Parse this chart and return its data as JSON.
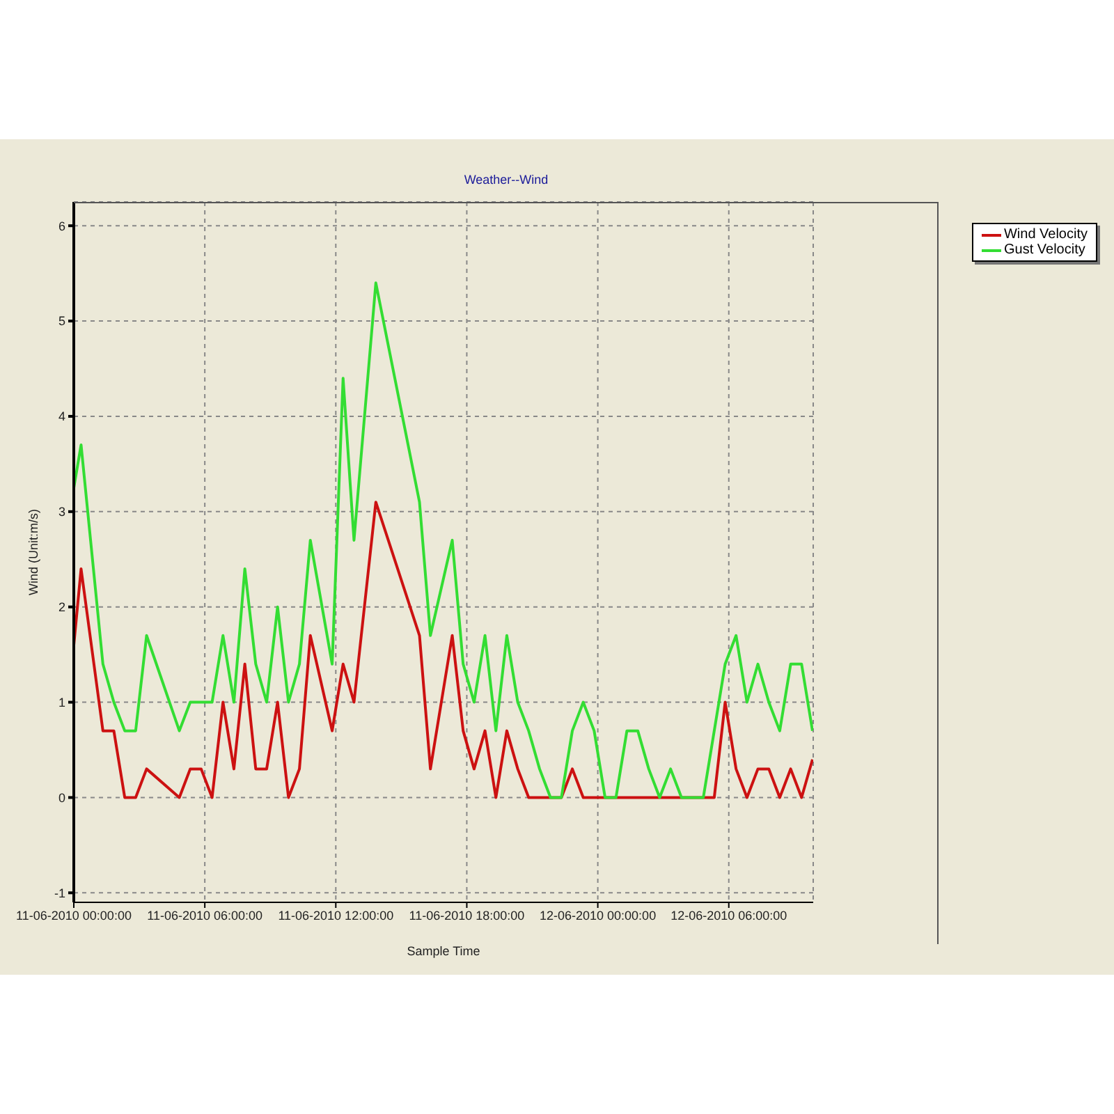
{
  "chart_data": {
    "type": "line",
    "title": "Weather--Wind",
    "xlabel": "Sample Time",
    "ylabel": "Wind (Unit:m/s)",
    "x": [
      "2010-06-11T00:00",
      "2010-06-11T00:20",
      "2010-06-11T01:20",
      "2010-06-11T01:50",
      "2010-06-11T02:20",
      "2010-06-11T02:50",
      "2010-06-11T03:20",
      "2010-06-11T04:50",
      "2010-06-11T05:20",
      "2010-06-11T05:50",
      "2010-06-11T06:20",
      "2010-06-11T06:50",
      "2010-06-11T07:20",
      "2010-06-11T07:50",
      "2010-06-11T08:20",
      "2010-06-11T08:50",
      "2010-06-11T09:20",
      "2010-06-11T09:50",
      "2010-06-11T10:20",
      "2010-06-11T10:50",
      "2010-06-11T11:50",
      "2010-06-11T12:20",
      "2010-06-11T12:50",
      "2010-06-11T13:50",
      "2010-06-11T15:50",
      "2010-06-11T16:20",
      "2010-06-11T17:20",
      "2010-06-11T17:50",
      "2010-06-11T18:20",
      "2010-06-11T18:50",
      "2010-06-11T19:20",
      "2010-06-11T19:50",
      "2010-06-11T20:20",
      "2010-06-11T20:50",
      "2010-06-11T21:20",
      "2010-06-11T21:50",
      "2010-06-11T22:20",
      "2010-06-11T22:50",
      "2010-06-11T23:20",
      "2010-06-11T23:50",
      "2010-06-12T00:20",
      "2010-06-12T00:50",
      "2010-06-12T01:20",
      "2010-06-12T01:50",
      "2010-06-12T02:20",
      "2010-06-12T02:50",
      "2010-06-12T03:20",
      "2010-06-12T03:50",
      "2010-06-12T04:50",
      "2010-06-12T05:20",
      "2010-06-12T05:50",
      "2010-06-12T06:20",
      "2010-06-12T06:50",
      "2010-06-12T07:20",
      "2010-06-12T07:50",
      "2010-06-12T08:20",
      "2010-06-12T08:50",
      "2010-06-12T09:20",
      "2010-06-12T09:50"
    ],
    "series": [
      {
        "name": "Wind Velocity",
        "color": "#cc1111",
        "values": [
          1.6,
          2.4,
          0.7,
          0.7,
          0,
          0,
          0.3,
          0,
          0.3,
          0.3,
          0,
          1.0,
          0.3,
          1.4,
          0.3,
          0.3,
          1.0,
          0,
          0.3,
          1.7,
          0.7,
          1.4,
          1.0,
          3.1,
          1.7,
          0.3,
          1.7,
          0.7,
          0.3,
          0.7,
          0,
          0.7,
          0.3,
          0,
          0,
          0,
          0,
          0.3,
          0,
          0,
          0,
          0,
          0,
          0,
          0,
          0,
          0,
          0,
          0,
          0,
          1.0,
          0.3,
          0,
          0.3,
          0.3,
          0,
          0.3,
          0,
          0.4
        ]
      },
      {
        "name": "Gust Velocity",
        "color": "#33dd33",
        "values": [
          3.25,
          3.7,
          1.4,
          1.0,
          0.7,
          0.7,
          1.7,
          0.7,
          1.0,
          1.0,
          1.0,
          1.7,
          1.0,
          2.4,
          1.4,
          1.0,
          2.0,
          1.0,
          1.4,
          2.7,
          1.4,
          4.4,
          2.7,
          5.4,
          3.1,
          1.7,
          2.7,
          1.4,
          1.0,
          1.7,
          0.7,
          1.7,
          1.0,
          0.7,
          0.3,
          0,
          0,
          0.7,
          1.0,
          0.7,
          0,
          0,
          0.7,
          0.7,
          0.3,
          0,
          0.3,
          0,
          0,
          0.7,
          1.4,
          1.7,
          1.0,
          1.4,
          1.0,
          0.7,
          1.4,
          1.4,
          0.7
        ]
      }
    ],
    "xlim": [
      "2010-06-11T00:00",
      "2010-06-12T09:52"
    ],
    "xticks": [
      {
        "value": "2010-06-11T00:00",
        "label": "11-06-2010 00:00:00"
      },
      {
        "value": "2010-06-11T06:00",
        "label": "11-06-2010 06:00:00"
      },
      {
        "value": "2010-06-11T12:00",
        "label": "11-06-2010 12:00:00"
      },
      {
        "value": "2010-06-11T18:00",
        "label": "11-06-2010 18:00:00"
      },
      {
        "value": "2010-06-12T00:00",
        "label": "12-06-2010 00:00:00"
      },
      {
        "value": "2010-06-12T06:00",
        "label": "12-06-2010 06:00:00"
      }
    ],
    "ylim": [
      -1.1,
      6.25
    ],
    "yticks": [
      -1,
      0,
      1,
      2,
      3,
      4,
      5,
      6
    ],
    "grid": true,
    "legend": "top right",
    "marker": "none",
    "line_style": "solid"
  }
}
